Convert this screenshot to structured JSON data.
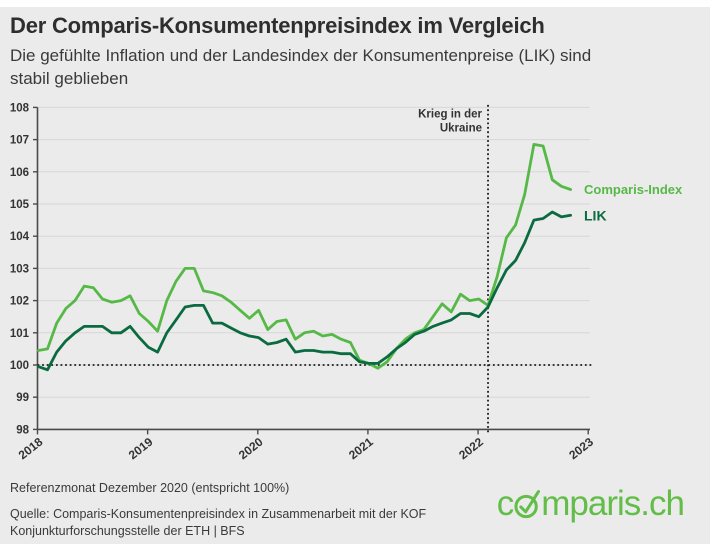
{
  "header": {
    "title": "Der Comparis-Konsumentenpreisindex im Vergleich",
    "subtitle": "Die gefühlte Inflation und der Landesindex der Konsumentenpreise (LIK) sind stabil geblieben"
  },
  "footer": {
    "reference_note": "Referenzmonat Dezember 2020 (entspricht 100%)",
    "source_note": "Quelle: Comparis-Konsumentenpreisindex in Zusammenarbeit mit der KOF Konjunkturforschungsstelle der ETH | BFS",
    "logo_prefix": "c",
    "logo_suffix": "mparis.ch"
  },
  "colors": {
    "background": "#ebebeb",
    "top_strip": "#ffffff",
    "gridline": "#d7d7d7",
    "axis": "#4a4a4a",
    "tick_label": "#333333",
    "dotted_line": "#1c1c1c",
    "annotation_text": "#333333",
    "comparis_green": "#56b947",
    "lik_dark_green": "#0a6b40",
    "logo_green": "#62bd49"
  },
  "chart_data": {
    "type": "line",
    "title": "Der Comparis-Konsumentenpreisindex im Vergleich",
    "x_unit": "month",
    "x_monthly_from": "2018-01",
    "x_monthly_to": "2022-11",
    "x_tick_labels": [
      "2018",
      "2019",
      "2020",
      "2021",
      "2022",
      "2023"
    ],
    "ylim": [
      98,
      108
    ],
    "y_tick_step": 1,
    "grid": true,
    "baseline_value": 100,
    "legend_position": "right-of-line-end",
    "annotation": {
      "lines": [
        "Krieg in der",
        "Ukraine"
      ],
      "month_index": 49
    },
    "series": [
      {
        "name": "Comparis-Index",
        "color": "#56b947",
        "values": [
          100.45,
          100.5,
          101.3,
          101.75,
          102.0,
          102.45,
          102.4,
          102.05,
          101.95,
          102.0,
          102.15,
          101.6,
          101.35,
          101.05,
          102.0,
          102.6,
          103.0,
          103.0,
          102.3,
          102.25,
          102.15,
          101.95,
          101.7,
          101.45,
          101.7,
          101.1,
          101.35,
          101.4,
          100.8,
          101.0,
          101.05,
          100.9,
          100.95,
          100.8,
          100.7,
          100.15,
          100.05,
          99.9,
          100.1,
          100.5,
          100.8,
          101.0,
          101.1,
          101.5,
          101.9,
          101.65,
          102.2,
          102.0,
          102.05,
          101.85,
          102.75,
          103.95,
          104.35,
          105.3,
          106.85,
          106.8,
          105.75,
          105.55,
          105.45
        ]
      },
      {
        "name": "LIK",
        "color": "#0a6b40",
        "values": [
          99.95,
          99.85,
          100.4,
          100.75,
          101.0,
          101.2,
          101.2,
          101.2,
          101.0,
          101.0,
          101.2,
          100.85,
          100.55,
          100.4,
          101.0,
          101.4,
          101.8,
          101.85,
          101.85,
          101.3,
          101.3,
          101.15,
          101.0,
          100.9,
          100.85,
          100.65,
          100.7,
          100.8,
          100.4,
          100.45,
          100.45,
          100.4,
          100.4,
          100.35,
          100.35,
          100.1,
          100.05,
          100.05,
          100.25,
          100.5,
          100.7,
          100.95,
          101.05,
          101.2,
          101.3,
          101.4,
          101.6,
          101.6,
          101.5,
          101.8,
          102.4,
          102.95,
          103.25,
          103.8,
          104.5,
          104.55,
          104.75,
          104.6,
          104.65
        ]
      }
    ]
  }
}
